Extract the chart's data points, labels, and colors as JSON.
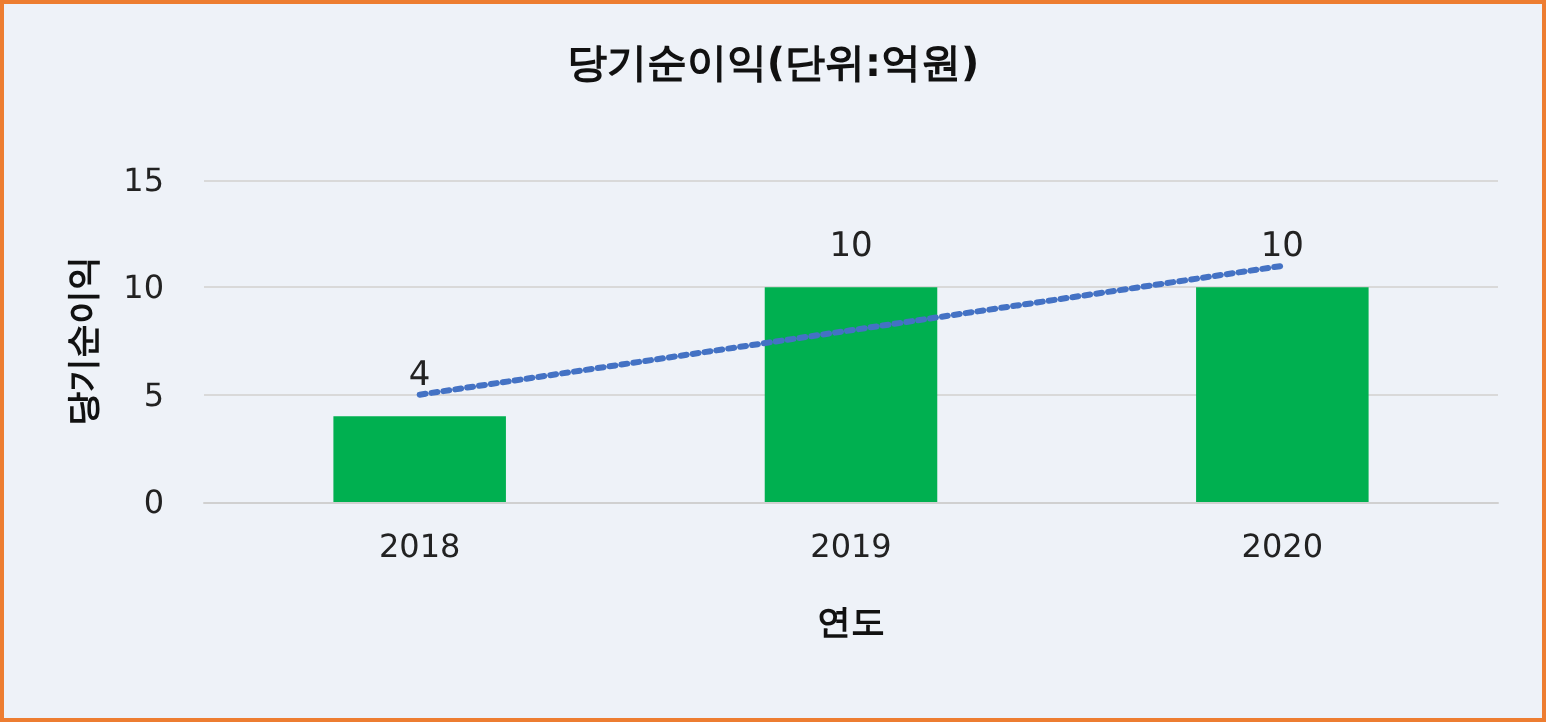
{
  "chart_data": {
    "type": "bar",
    "title": "당기순이익(단위:억원)",
    "xlabel": "연도",
    "ylabel": "당기순이익",
    "categories": [
      "2018",
      "2019",
      "2020"
    ],
    "series": [
      {
        "color": "#00b050",
        "values": [
          4,
          10,
          10
        ],
        "value_labels": [
          "4",
          "10",
          "10"
        ]
      },
      {
        "type": "line",
        "color": "#4472c4",
        "values": [
          5,
          8,
          11
        ],
        "line_style": "dotted",
        "marker": "none"
      }
    ],
    "ylim": [
      0,
      15
    ],
    "yticks": [
      0,
      5,
      10,
      15
    ],
    "grid": "y"
  }
}
